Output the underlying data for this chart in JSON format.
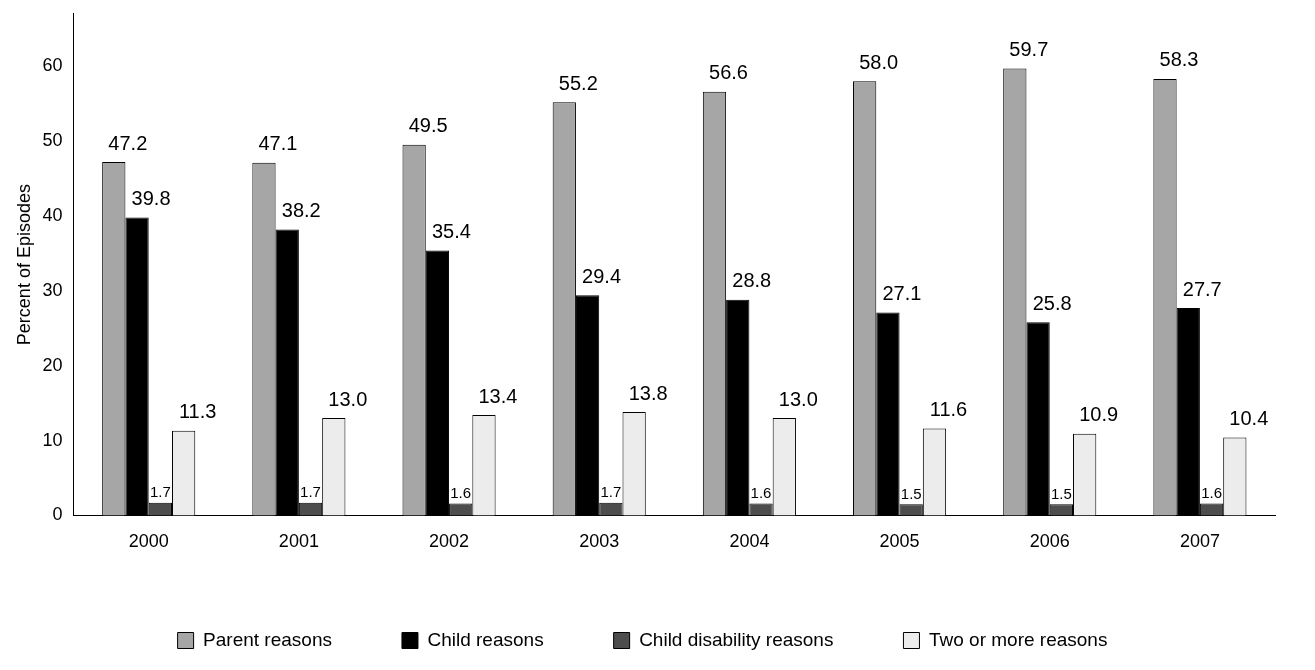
{
  "chart_data": {
    "type": "bar",
    "ylabel": "Percent of Episodes",
    "categories": [
      "2000",
      "2001",
      "2002",
      "2003",
      "2004",
      "2005",
      "2006",
      "2007"
    ],
    "series": [
      {
        "name": "Parent reasons",
        "color": "#a6a6a6",
        "values": [
          47.2,
          47.1,
          49.5,
          55.2,
          56.6,
          58.0,
          59.7,
          58.3
        ],
        "value_labels": [
          "47.2",
          "47.1",
          "49.5",
          "55.2",
          "56.6",
          "58.0",
          "59.7",
          "58.3"
        ]
      },
      {
        "name": "Child reasons",
        "color": "#000000",
        "values": [
          39.8,
          38.2,
          35.4,
          29.4,
          28.8,
          27.1,
          25.8,
          27.7
        ],
        "value_labels": [
          "39.8",
          "38.2",
          "35.4",
          "29.4",
          "28.8",
          "27.1",
          "25.8",
          "27.7"
        ]
      },
      {
        "name": "Child disability reasons",
        "color": "#4d4d4d",
        "values": [
          1.7,
          1.7,
          1.6,
          1.7,
          1.6,
          1.5,
          1.5,
          1.6
        ],
        "value_labels": [
          "1.7",
          "1.7",
          "1.6",
          "1.7",
          "1.6",
          "1.5",
          "1.5",
          "1.6"
        ]
      },
      {
        "name": "Two or more reasons",
        "color": "#ececec",
        "values": [
          11.3,
          13.0,
          13.4,
          13.8,
          13.0,
          11.6,
          10.9,
          10.4
        ],
        "value_labels": [
          "11.3",
          "13.0",
          "13.4",
          "13.8",
          "13.0",
          "11.6",
          "10.9",
          "10.4"
        ]
      }
    ],
    "ylim": [
      0,
      67
    ],
    "yticks": [
      0,
      10,
      20,
      30,
      40,
      50,
      60
    ],
    "grid": false,
    "legend": "bottom"
  }
}
